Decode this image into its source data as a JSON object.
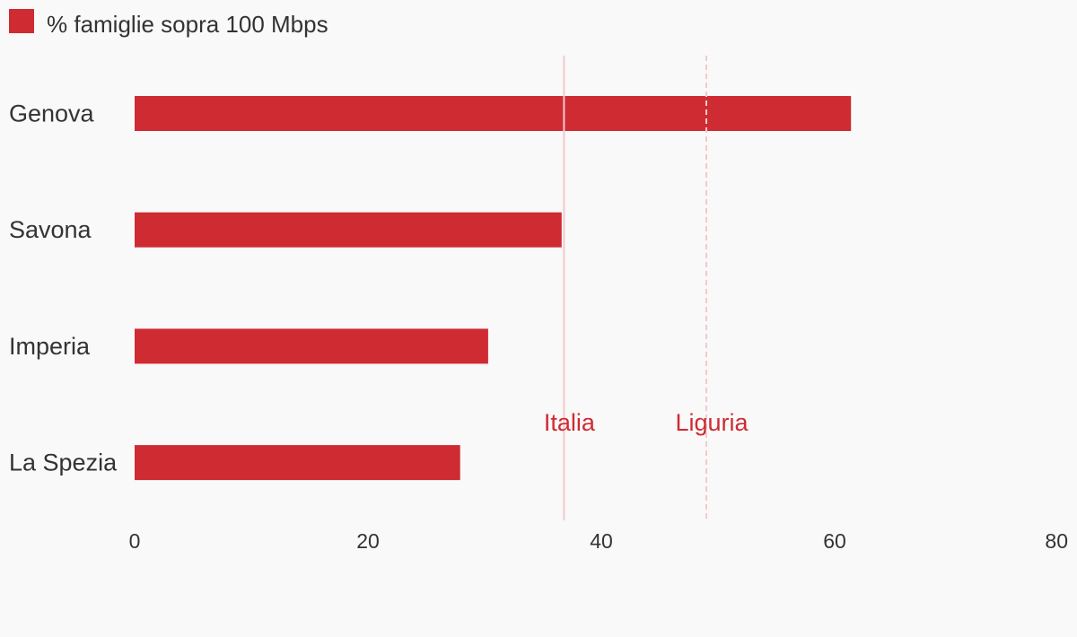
{
  "chart_data": {
    "type": "bar",
    "orientation": "horizontal",
    "categories": [
      "Genova",
      "Savona",
      "Imperia",
      "La Spezia"
    ],
    "series": [
      {
        "name": "% famiglie sopra 100 Mbps",
        "values": [
          61.4,
          36.6,
          30.3,
          27.9
        ],
        "color": "#cf2b32"
      }
    ],
    "xlim": [
      0,
      80
    ],
    "xticks": [
      0,
      20,
      40,
      60,
      80
    ],
    "xtick_labels": [
      "0",
      "20",
      "40",
      "60",
      "80"
    ],
    "reference_lines": [
      {
        "label": "Italia",
        "value": 36.8,
        "style": "solid",
        "color": "#f3c9cb",
        "label_color": "#cf2b32"
      },
      {
        "label": "Liguria",
        "value": 49.0,
        "style": "dashed",
        "color": "#f3c9cb",
        "label_color": "#cf2b32"
      }
    ],
    "legend_position": "top-left",
    "grid": false,
    "title": "",
    "xlabel": "",
    "ylabel": ""
  }
}
